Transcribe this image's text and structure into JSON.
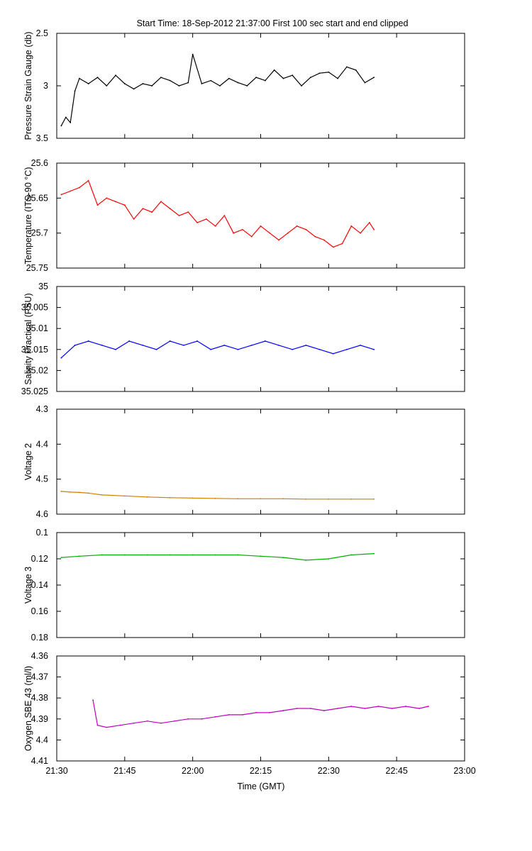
{
  "chart_data": {
    "type": "line",
    "title": "Start Time: 18-Sep-2012 21:37:00   First 100 sec start and end clipped",
    "xlabel": "Time (GMT)",
    "x_ticks": [
      "21:30",
      "21:45",
      "22:00",
      "22:15",
      "22:30",
      "22:45",
      "23:00"
    ],
    "x_range": [
      "21:30",
      "23:00"
    ],
    "grid": false,
    "legend": "none",
    "panels": [
      {
        "key": "pressure",
        "ylabel": "Pressure Strain Gauge (db)",
        "yticks": [
          "2.5",
          "3",
          "3.5"
        ],
        "ylim": [
          3.5,
          2.5
        ],
        "inverted": true,
        "color": "#000000",
        "series": {
          "x": [
            "21:31",
            "21:32",
            "21:33",
            "21:34",
            "21:35",
            "21:37",
            "21:39",
            "21:41",
            "21:43",
            "21:45",
            "21:47",
            "21:49",
            "21:51",
            "21:53",
            "21:55",
            "21:57",
            "21:59",
            "22:00",
            "22:02",
            "22:04",
            "22:06",
            "22:08",
            "22:10",
            "22:12",
            "22:14",
            "22:16",
            "22:18",
            "22:20",
            "22:22",
            "22:24",
            "22:26",
            "22:28",
            "22:30",
            "22:32",
            "22:34",
            "22:36",
            "22:38",
            "22:40"
          ],
          "values": [
            3.38,
            3.3,
            3.35,
            3.05,
            2.93,
            2.98,
            2.92,
            3.0,
            2.9,
            2.98,
            3.03,
            2.98,
            3.0,
            2.92,
            2.95,
            3.0,
            2.97,
            2.7,
            2.98,
            2.95,
            3.0,
            2.93,
            2.97,
            3.0,
            2.92,
            2.95,
            2.85,
            2.93,
            2.9,
            3.0,
            2.92,
            2.88,
            2.87,
            2.93,
            2.82,
            2.85,
            2.97,
            2.92
          ]
        }
      },
      {
        "key": "temperature",
        "ylabel": "Temperature (ITS-90 °C)",
        "yticks": [
          "25.6",
          "25.65",
          "25.7",
          "25.75"
        ],
        "ylim": [
          25.75,
          25.6
        ],
        "inverted": true,
        "color": "#ff0000",
        "series": {
          "x": [
            "21:31",
            "21:33",
            "21:35",
            "21:37",
            "21:39",
            "21:41",
            "21:43",
            "21:45",
            "21:47",
            "21:49",
            "21:51",
            "21:53",
            "21:55",
            "21:57",
            "21:59",
            "22:01",
            "22:03",
            "22:05",
            "22:07",
            "22:09",
            "22:11",
            "22:13",
            "22:15",
            "22:17",
            "22:19",
            "22:21",
            "22:23",
            "22:25",
            "22:27",
            "22:29",
            "22:31",
            "22:33",
            "22:35",
            "22:37",
            "22:39",
            "22:40"
          ],
          "values": [
            25.645,
            25.64,
            25.635,
            25.625,
            25.66,
            25.65,
            25.655,
            25.66,
            25.68,
            25.665,
            25.67,
            25.655,
            25.665,
            25.675,
            25.67,
            25.685,
            25.68,
            25.69,
            25.675,
            25.7,
            25.695,
            25.705,
            25.69,
            25.7,
            25.71,
            25.7,
            25.69,
            25.695,
            25.705,
            25.71,
            25.72,
            25.715,
            25.69,
            25.7,
            25.685,
            25.695
          ]
        }
      },
      {
        "key": "salinity",
        "ylabel": "Salinity Practical (PSU)",
        "yticks": [
          "35",
          "35.005",
          "35.01",
          "35.015",
          "35.02",
          "35.025"
        ],
        "ylim": [
          35.025,
          35.0
        ],
        "inverted": true,
        "color": "#0000ff",
        "series": {
          "x": [
            "21:31",
            "21:34",
            "21:37",
            "21:40",
            "21:43",
            "21:46",
            "21:49",
            "21:52",
            "21:55",
            "21:58",
            "22:01",
            "22:04",
            "22:07",
            "22:10",
            "22:13",
            "22:16",
            "22:19",
            "22:22",
            "22:25",
            "22:28",
            "22:31",
            "22:34",
            "22:37",
            "22:40"
          ],
          "values": [
            35.017,
            35.014,
            35.013,
            35.014,
            35.015,
            35.013,
            35.014,
            35.015,
            35.013,
            35.014,
            35.013,
            35.015,
            35.014,
            35.015,
            35.014,
            35.013,
            35.014,
            35.015,
            35.014,
            35.015,
            35.016,
            35.015,
            35.014,
            35.015
          ]
        }
      },
      {
        "key": "voltage2",
        "ylabel": "Voltage 2",
        "yticks": [
          "4.3",
          "4.4",
          "4.5",
          "4.6"
        ],
        "ylim": [
          4.6,
          4.3
        ],
        "inverted": true,
        "color": "#d07f00",
        "series": {
          "x": [
            "21:31",
            "21:33",
            "21:35",
            "21:37",
            "21:40",
            "21:45",
            "21:50",
            "21:55",
            "22:00",
            "22:05",
            "22:10",
            "22:15",
            "22:20",
            "22:25",
            "22:30",
            "22:35",
            "22:40"
          ],
          "values": [
            4.535,
            4.537,
            4.538,
            4.54,
            4.545,
            4.548,
            4.551,
            4.553,
            4.554,
            4.555,
            4.556,
            4.556,
            4.556,
            4.557,
            4.557,
            4.557,
            4.557
          ]
        }
      },
      {
        "key": "voltage3",
        "ylabel": "Voltage 3",
        "yticks": [
          "0.1",
          "0.12",
          "0.14",
          "0.16",
          "0.18"
        ],
        "ylim": [
          0.18,
          0.1
        ],
        "inverted": true,
        "color": "#00b000",
        "series": {
          "x": [
            "21:31",
            "21:35",
            "21:40",
            "21:45",
            "21:50",
            "21:55",
            "22:00",
            "22:05",
            "22:10",
            "22:15",
            "22:20",
            "22:25",
            "22:30",
            "22:35",
            "22:40"
          ],
          "values": [
            0.119,
            0.118,
            0.117,
            0.117,
            0.117,
            0.117,
            0.117,
            0.117,
            0.117,
            0.118,
            0.119,
            0.121,
            0.12,
            0.117,
            0.116
          ]
        }
      },
      {
        "key": "oxygen",
        "ylabel": "Oxygen SBE 43 (ml/l)",
        "yticks": [
          "4.36",
          "4.37",
          "4.38",
          "4.39",
          "4.4",
          "4.41"
        ],
        "ylim": [
          4.41,
          4.36
        ],
        "inverted": true,
        "color": "#c000c0",
        "series": {
          "x": [
            "21:38",
            "21:39",
            "21:41",
            "21:44",
            "21:47",
            "21:50",
            "21:53",
            "21:56",
            "21:59",
            "22:02",
            "22:05",
            "22:08",
            "22:11",
            "22:14",
            "22:17",
            "22:20",
            "22:23",
            "22:26",
            "22:29",
            "22:32",
            "22:35",
            "22:38",
            "22:41",
            "22:44",
            "22:47",
            "22:50",
            "22:52"
          ],
          "values": [
            4.381,
            4.393,
            4.394,
            4.393,
            4.392,
            4.391,
            4.392,
            4.391,
            4.39,
            4.39,
            4.389,
            4.388,
            4.388,
            4.387,
            4.387,
            4.386,
            4.385,
            4.385,
            4.386,
            4.385,
            4.384,
            4.385,
            4.384,
            4.385,
            4.384,
            4.385,
            4.384
          ]
        }
      }
    ]
  }
}
